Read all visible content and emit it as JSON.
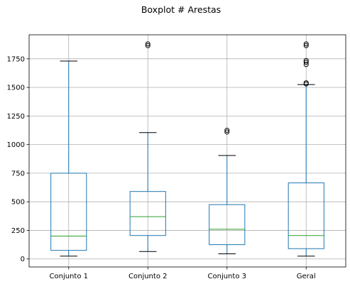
{
  "chart_data": {
    "type": "boxplot",
    "title": "Boxplot # Arestas",
    "categories": [
      "Conjunto 1",
      "Conjunto 2",
      "Conjunto 3",
      "Geral"
    ],
    "ylim": [
      -70,
      1960
    ],
    "yticks": [
      0,
      250,
      500,
      750,
      1000,
      1250,
      1500,
      1750
    ],
    "grid": true,
    "boxes": [
      {
        "whislo": 25,
        "q1": 75,
        "med": 200,
        "q3": 750,
        "whishi": 1730,
        "fliers": []
      },
      {
        "whislo": 65,
        "q1": 205,
        "med": 370,
        "q3": 590,
        "whishi": 1105,
        "fliers": [
          1865,
          1880
        ]
      },
      {
        "whislo": 45,
        "q1": 125,
        "med": 260,
        "q3": 475,
        "whishi": 905,
        "fliers": [
          1110,
          1125
        ]
      },
      {
        "whislo": 25,
        "q1": 90,
        "med": 205,
        "q3": 665,
        "whishi": 1525,
        "fliers": [
          1530,
          1540,
          1700,
          1720,
          1735,
          1865,
          1880
        ]
      }
    ]
  }
}
